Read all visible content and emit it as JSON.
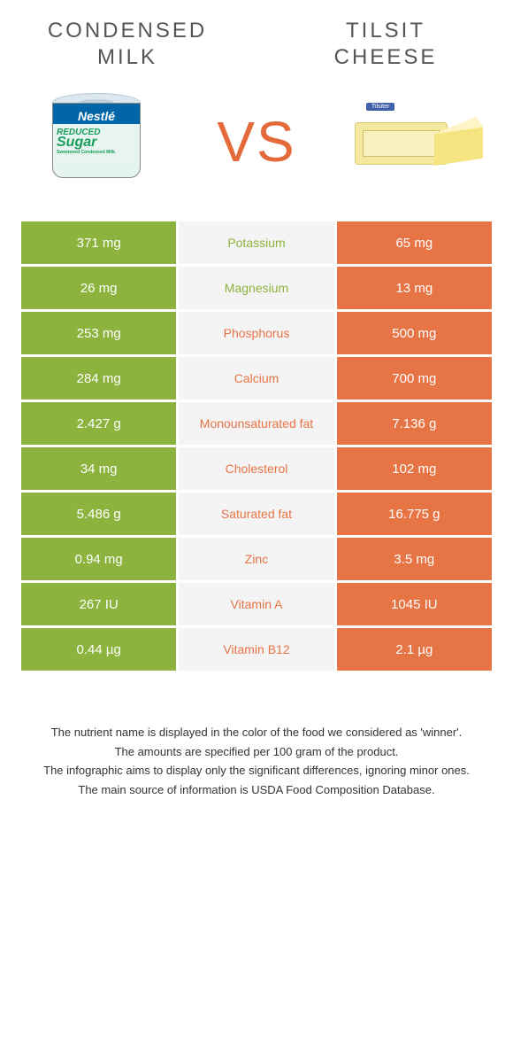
{
  "titles": {
    "left_line1": "CONDENSED",
    "left_line2": "MILK",
    "right_line1": "TILSIT",
    "right_line2": "CHEESE"
  },
  "vs_label": "VS",
  "product_left": {
    "brand": "Nestlé",
    "line1": "REDUCED",
    "line2": "Sugar",
    "line3": "Sweetened Condensed Milk"
  },
  "product_right": {
    "label": "Tilsiter"
  },
  "colors": {
    "left": "#8bb33d",
    "right": "#e77445",
    "mid_bg": "#f4f4f4",
    "vs": "#e46a3a"
  },
  "rows": [
    {
      "left": "371 mg",
      "label": "Potassium",
      "right": "65 mg",
      "winner": "left"
    },
    {
      "left": "26 mg",
      "label": "Magnesium",
      "right": "13 mg",
      "winner": "left"
    },
    {
      "left": "253 mg",
      "label": "Phosphorus",
      "right": "500 mg",
      "winner": "right"
    },
    {
      "left": "284 mg",
      "label": "Calcium",
      "right": "700 mg",
      "winner": "right"
    },
    {
      "left": "2.427 g",
      "label": "Monounsaturated fat",
      "right": "7.136 g",
      "winner": "right"
    },
    {
      "left": "34 mg",
      "label": "Cholesterol",
      "right": "102 mg",
      "winner": "right"
    },
    {
      "left": "5.486 g",
      "label": "Saturated fat",
      "right": "16.775 g",
      "winner": "right"
    },
    {
      "left": "0.94 mg",
      "label": "Zinc",
      "right": "3.5 mg",
      "winner": "right"
    },
    {
      "left": "267 IU",
      "label": "Vitamin A",
      "right": "1045 IU",
      "winner": "right"
    },
    {
      "left": "0.44 µg",
      "label": "Vitamin B12",
      "right": "2.1 µg",
      "winner": "right"
    }
  ],
  "footnotes": [
    "The nutrient name is displayed in the color of the food we considered as 'winner'.",
    "The amounts are specified per 100 gram of the product.",
    "The infographic aims to display only the significant differences, ignoring minor ones.",
    "The main source of information is USDA Food Composition Database."
  ]
}
